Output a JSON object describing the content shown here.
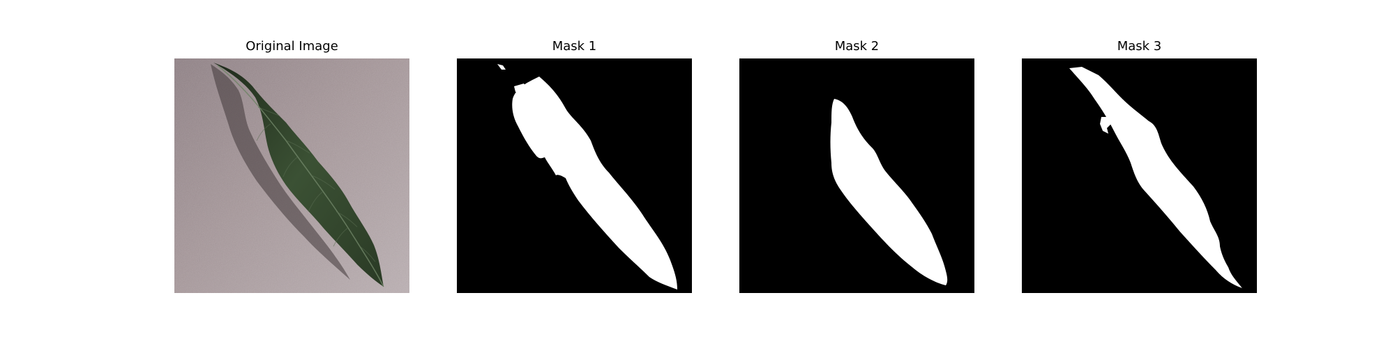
{
  "figure": {
    "background": "#ffffff",
    "panels": [
      {
        "title": "Original Image",
        "content": "photo of a green leaf on a mauve-gray textured surface"
      },
      {
        "title": "Mask 1",
        "content": "binary segmentation mask, white leaf shape on black"
      },
      {
        "title": "Mask 2",
        "content": "binary segmentation mask, white leaf shape on black"
      },
      {
        "title": "Mask 3",
        "content": "binary segmentation mask, white leaf shape on black"
      }
    ]
  },
  "colors": {
    "mask_background": "#000000",
    "mask_foreground": "#ffffff",
    "leaf_dark": "#24321f",
    "leaf_mid": "#3e5536",
    "surface": "#a8999c"
  }
}
